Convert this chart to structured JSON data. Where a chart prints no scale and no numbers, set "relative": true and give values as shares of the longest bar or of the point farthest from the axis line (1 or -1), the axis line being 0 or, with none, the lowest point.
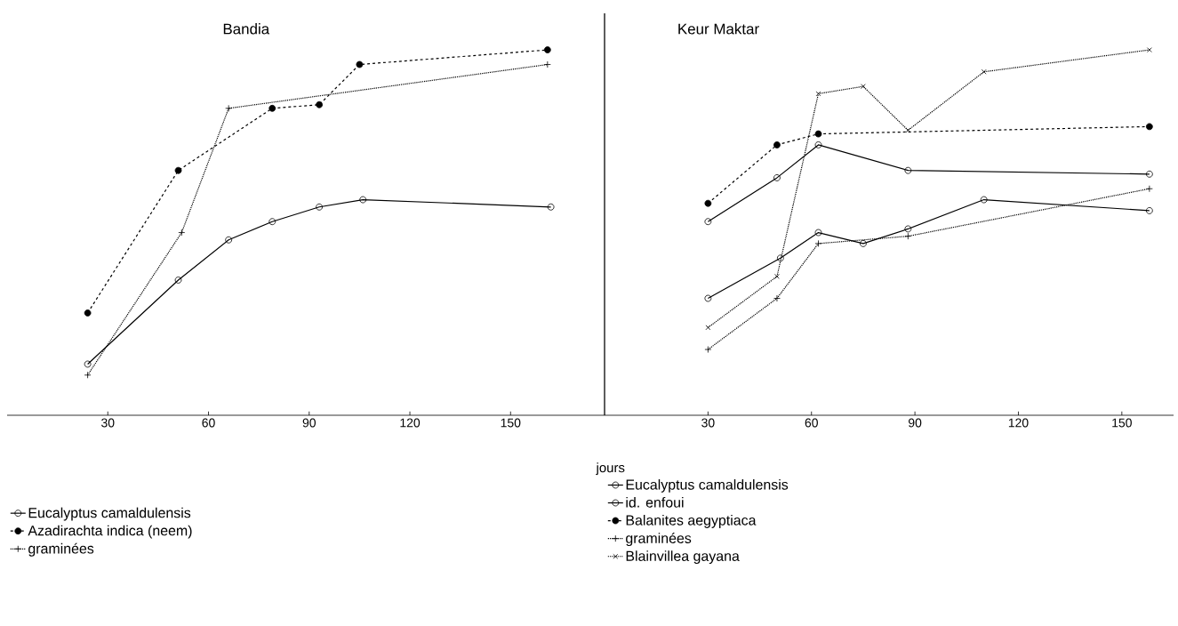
{
  "chart_data": [
    {
      "type": "line",
      "title": "Bandia",
      "xlabel": "jours",
      "xlim": [
        0,
        178
      ],
      "xticks": [
        30,
        60,
        90,
        120,
        150
      ],
      "relative": true,
      "legend": "bottom",
      "series": [
        {
          "name": "Eucalyptus camaldulensis",
          "color": "#000000",
          "marker": "circle",
          "line_style": "solid",
          "x": [
            24,
            51,
            66,
            79,
            93,
            106,
            162
          ],
          "values": [
            0.14,
            0.37,
            0.48,
            0.53,
            0.57,
            0.59,
            0.57
          ]
        },
        {
          "name": "Azadirachta indica (neem)",
          "color": "#000000",
          "marker": "dot",
          "line_style": "dashed",
          "x": [
            24,
            51,
            79,
            93,
            105,
            161
          ],
          "values": [
            0.28,
            0.67,
            0.84,
            0.85,
            0.96,
            1
          ]
        },
        {
          "name": "graminées",
          "color": "#000000",
          "marker": "plus",
          "line_style": "dotted",
          "x": [
            24,
            52,
            66,
            161
          ],
          "values": [
            0.11,
            0.5,
            0.84,
            0.96
          ]
        }
      ]
    },
    {
      "type": "line",
      "title": "Keur Maktar",
      "xlim": [
        0,
        165
      ],
      "xticks": [
        30,
        60,
        90,
        120,
        150
      ],
      "relative": true,
      "legend": "bottom",
      "series": [
        {
          "name": "Eucalyptus camaldulensis",
          "color": "#000000",
          "marker": "circle",
          "line_style": "solid",
          "x": [
            30,
            51,
            62,
            75,
            88,
            110,
            158
          ],
          "values": [
            0.32,
            0.43,
            0.5,
            0.47,
            0.51,
            0.59,
            0.56
          ]
        },
        {
          "name": "id. enfoui",
          "color": "#000000",
          "marker": "circle",
          "line_style": "solid",
          "x": [
            30,
            50,
            62,
            88,
            158
          ],
          "values": [
            0.53,
            0.65,
            0.74,
            0.67,
            0.66
          ]
        },
        {
          "name": "Balanites aegyptiaca",
          "color": "#000000",
          "marker": "dot",
          "line_style": "dashed",
          "x": [
            30,
            50,
            62,
            158
          ],
          "values": [
            0.58,
            0.74,
            0.77,
            0.79
          ]
        },
        {
          "name": "graminées",
          "color": "#000000",
          "marker": "plus",
          "line_style": "dotted",
          "x": [
            30,
            50,
            62,
            88,
            158
          ],
          "values": [
            0.18,
            0.32,
            0.47,
            0.49,
            0.62
          ]
        },
        {
          "name": "Blainvillea gayana",
          "color": "#000000",
          "marker": "cross",
          "line_style": "dotted",
          "x": [
            30,
            50,
            62,
            75,
            88,
            110,
            158
          ],
          "values": [
            0.24,
            0.38,
            0.88,
            0.9,
            0.78,
            0.94,
            1
          ]
        }
      ]
    }
  ]
}
